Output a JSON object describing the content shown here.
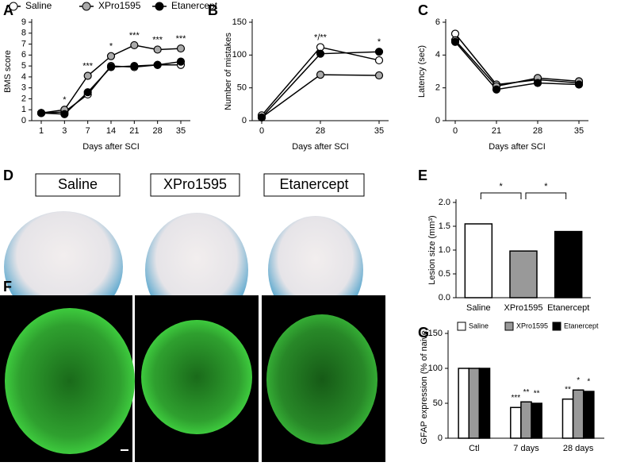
{
  "chart_data": [
    {
      "panel": "A",
      "type": "line",
      "xlabel": "Days after SCI",
      "ylabel": "BMS score",
      "categories": [
        "1",
        "3",
        "7",
        "14",
        "21",
        "28",
        "35"
      ],
      "ylim": [
        0,
        9
      ],
      "yticks": [
        0,
        1,
        2,
        3,
        4,
        5,
        6,
        7,
        8,
        9
      ],
      "legend": "top",
      "significance": [
        null,
        "*",
        "***",
        "*",
        "***",
        "***",
        "***"
      ],
      "series": [
        {
          "name": "Saline",
          "color": "#ffffff",
          "values": [
            0.7,
            0.8,
            2.4,
            5.0,
            4.9,
            5.1,
            5.1
          ]
        },
        {
          "name": "XPro1595",
          "color": "#aaaaaa",
          "values": [
            0.7,
            1.0,
            4.1,
            5.9,
            6.9,
            6.5,
            6.6
          ]
        },
        {
          "name": "Etanercept",
          "color": "#000000",
          "values": [
            0.7,
            0.6,
            2.6,
            4.9,
            5.0,
            5.1,
            5.4
          ]
        }
      ]
    },
    {
      "panel": "B",
      "type": "line",
      "xlabel": "Days after SCI",
      "ylabel": "Number of mistakes",
      "categories": [
        "0",
        "28",
        "35"
      ],
      "ylim": [
        0,
        150
      ],
      "yticks": [
        0,
        50,
        100,
        150
      ],
      "significance": [
        null,
        "*/**",
        "*"
      ],
      "series": [
        {
          "name": "Saline",
          "color": "#ffffff",
          "values": [
            8,
            112,
            92
          ]
        },
        {
          "name": "XPro1595",
          "color": "#aaaaaa",
          "values": [
            5,
            70,
            69
          ]
        },
        {
          "name": "Etanercept",
          "color": "#000000",
          "values": [
            5,
            102,
            105
          ]
        }
      ]
    },
    {
      "panel": "C",
      "type": "line",
      "xlabel": "Days after SCI",
      "ylabel": "Latency (sec)",
      "categories": [
        "0",
        "21",
        "28",
        "35"
      ],
      "ylim": [
        0,
        6
      ],
      "yticks": [
        0,
        2,
        4,
        6
      ],
      "series": [
        {
          "name": "Saline",
          "color": "#ffffff",
          "values": [
            5.3,
            2.2,
            2.5,
            2.3
          ]
        },
        {
          "name": "XPro1595",
          "color": "#aaaaaa",
          "values": [
            4.9,
            2.1,
            2.6,
            2.4
          ]
        },
        {
          "name": "Etanercept",
          "color": "#000000",
          "values": [
            4.8,
            1.9,
            2.3,
            2.2
          ]
        }
      ]
    },
    {
      "panel": "E",
      "type": "bar",
      "ylabel": "Lesion size (mm³)",
      "categories": [
        "Saline",
        "XPro1595",
        "Etanercept"
      ],
      "values": [
        1.55,
        0.98,
        1.39
      ],
      "colors": [
        "#ffffff",
        "#999999",
        "#000000"
      ],
      "ylim": [
        0,
        2
      ],
      "yticks": [
        {
          "value": 0,
          "label": "0.0"
        },
        {
          "value": 0.5,
          "label": "0.5"
        },
        {
          "value": 1,
          "label": "1.0"
        },
        {
          "value": 1.5,
          "label": "1.5"
        },
        {
          "value": 2,
          "label": "2.0"
        }
      ],
      "comparisons": [
        {
          "from": 0,
          "to": 1,
          "label": "*"
        },
        {
          "from": 1,
          "to": 2,
          "label": "*"
        }
      ]
    },
    {
      "panel": "G",
      "type": "grouped_bar",
      "ylabel": "GFAP expression (% of naive)",
      "categories": [
        "Ctl",
        "7 days",
        "28 days"
      ],
      "ylim": [
        0,
        150
      ],
      "yticks": [
        0,
        50,
        100,
        150
      ],
      "legend": "top",
      "series": [
        {
          "name": "Saline",
          "color": "#ffffff",
          "values": [
            100,
            44,
            56
          ],
          "significance": [
            null,
            "***",
            "**"
          ]
        },
        {
          "name": "XPro1595",
          "color": "#999999",
          "values": [
            100,
            52,
            69
          ],
          "significance": [
            null,
            "**",
            "*"
          ]
        },
        {
          "name": "Etanercept",
          "color": "#000000",
          "values": [
            100,
            50,
            67
          ],
          "significance": [
            null,
            "**",
            "*"
          ]
        }
      ]
    }
  ],
  "panel_d": {
    "panel": "D",
    "labels": [
      "Saline",
      "XPro1595",
      "Etanercept"
    ]
  },
  "panel_f": {
    "panel": "F"
  }
}
